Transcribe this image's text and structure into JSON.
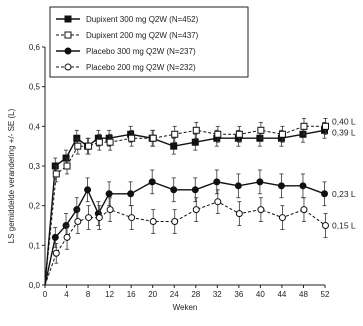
{
  "chart_data": {
    "type": "line",
    "xlabel": "Weken",
    "ylabel": "LS gemiddelde verandering +/- SE (L)",
    "xlim": [
      0,
      52
    ],
    "ylim": [
      0,
      0.6
    ],
    "x_ticks": [
      "0",
      "4",
      "8",
      "12",
      "16",
      "20",
      "24",
      "28",
      "32",
      "36",
      "40",
      "44",
      "48",
      "52"
    ],
    "y_ticks": [
      "0,0",
      "0,1",
      "0,2",
      "0,3",
      "0,4",
      "0,5",
      "0,6"
    ],
    "legend_position": "top-left",
    "grid": false,
    "series": [
      {
        "name": "Dupixent 300 mg Q2W (N=452)",
        "marker": "square-filled",
        "line": "solid",
        "end_label": "0,39 L",
        "x": [
          0,
          2,
          4,
          6,
          8,
          10,
          12,
          16,
          20,
          24,
          28,
          32,
          36,
          40,
          44,
          48,
          52
        ],
        "values": [
          0,
          0.3,
          0.32,
          0.37,
          0.35,
          0.37,
          0.37,
          0.38,
          0.37,
          0.35,
          0.36,
          0.37,
          0.37,
          0.37,
          0.37,
          0.38,
          0.39
        ],
        "error": [
          0,
          0.02,
          0.02,
          0.02,
          0.02,
          0.02,
          0.02,
          0.02,
          0.02,
          0.02,
          0.02,
          0.02,
          0.02,
          0.02,
          0.02,
          0.02,
          0.02
        ]
      },
      {
        "name": "Dupixent 200 mg Q2W (N=437)",
        "marker": "square-open",
        "line": "dashed",
        "end_label": "0,40 L",
        "x": [
          0,
          2,
          4,
          6,
          8,
          10,
          12,
          16,
          20,
          24,
          28,
          32,
          36,
          40,
          44,
          48,
          52
        ],
        "values": [
          0,
          0.28,
          0.3,
          0.35,
          0.35,
          0.36,
          0.36,
          0.37,
          0.37,
          0.38,
          0.39,
          0.38,
          0.38,
          0.39,
          0.38,
          0.4,
          0.4
        ],
        "error": [
          0,
          0.02,
          0.02,
          0.02,
          0.02,
          0.02,
          0.02,
          0.02,
          0.02,
          0.02,
          0.02,
          0.02,
          0.02,
          0.02,
          0.02,
          0.02,
          0.02
        ]
      },
      {
        "name": "Placebo 300 mg Q2W (N=237)",
        "marker": "circle-filled",
        "line": "solid",
        "end_label": "0,23 L",
        "x": [
          0,
          2,
          4,
          6,
          8,
          10,
          12,
          16,
          20,
          24,
          28,
          32,
          36,
          40,
          44,
          48,
          52
        ],
        "values": [
          0,
          0.12,
          0.15,
          0.19,
          0.24,
          0.18,
          0.23,
          0.23,
          0.26,
          0.24,
          0.24,
          0.26,
          0.25,
          0.26,
          0.25,
          0.25,
          0.23
        ],
        "error": [
          0,
          0.025,
          0.03,
          0.03,
          0.03,
          0.03,
          0.03,
          0.03,
          0.03,
          0.03,
          0.03,
          0.03,
          0.03,
          0.03,
          0.03,
          0.03,
          0.03
        ]
      },
      {
        "name": "Placebo 200 mg Q2W (N=232)",
        "marker": "circle-open",
        "line": "dashed",
        "end_label": "0,15 L",
        "x": [
          0,
          2,
          4,
          6,
          8,
          10,
          12,
          16,
          20,
          24,
          28,
          32,
          36,
          40,
          44,
          48,
          52
        ],
        "values": [
          0,
          0.08,
          0.12,
          0.16,
          0.17,
          0.17,
          0.19,
          0.17,
          0.16,
          0.16,
          0.19,
          0.21,
          0.18,
          0.19,
          0.17,
          0.19,
          0.15
        ],
        "error": [
          0,
          0.025,
          0.03,
          0.03,
          0.03,
          0.03,
          0.03,
          0.03,
          0.03,
          0.03,
          0.03,
          0.03,
          0.03,
          0.03,
          0.03,
          0.03,
          0.03
        ]
      }
    ]
  }
}
